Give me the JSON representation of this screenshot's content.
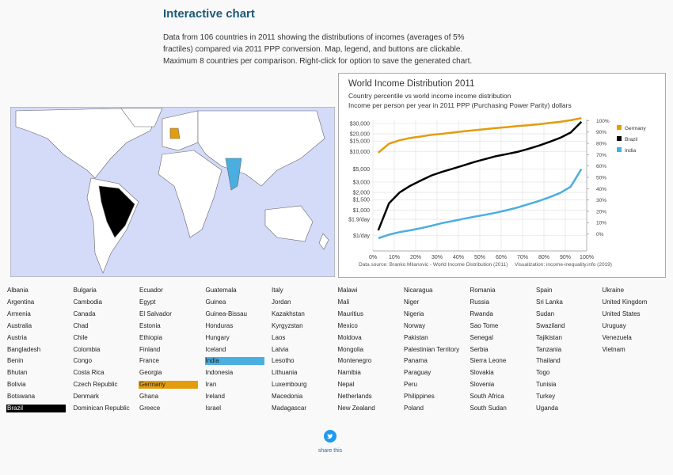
{
  "header": {
    "title": "Interactive chart",
    "description": "Data from 106 countries in 2011 showing the distributions of incomes (averages of 5% fractiles) compared via 2011 PPP conversion. Map, legend, and buttons are clickable. Maximum 8 countries per comparison. Right-click for option to save the generated chart."
  },
  "chart_data": {
    "type": "line",
    "title": "World Income Distribution 2011",
    "subtitle": "Country percentile vs world income income distribution",
    "y_axis_label": "Income per person per year in 2011 PPP (Purchasing Power Parity) dollars",
    "source": "Data source: Branko Milanovic - World Income Distribution (2011)",
    "credit": "Visualization: income-inequality.info (2019)",
    "x": [
      2.5,
      7.5,
      12.5,
      17.5,
      22.5,
      27.5,
      32.5,
      37.5,
      42.5,
      47.5,
      52.5,
      57.5,
      62.5,
      67.5,
      72.5,
      77.5,
      82.5,
      87.5,
      92.5,
      97.5
    ],
    "series": [
      {
        "name": "Germany",
        "color": "#e39c0c",
        "values": [
          9500,
          13500,
          15500,
          17000,
          18000,
          19200,
          20000,
          21000,
          22000,
          23000,
          24000,
          25000,
          26000,
          27000,
          28000,
          29000,
          30500,
          32000,
          34000,
          37000
        ]
      },
      {
        "name": "Brazil",
        "color": "#000000",
        "values": [
          450,
          1300,
          2000,
          2600,
          3200,
          3900,
          4500,
          5100,
          5800,
          6600,
          7400,
          8300,
          9000,
          9800,
          11000,
          12500,
          14500,
          17000,
          21000,
          32000
        ]
      },
      {
        "name": "India",
        "color": "#4aaee0",
        "values": [
          330,
          380,
          420,
          450,
          490,
          540,
          600,
          650,
          710,
          770,
          830,
          900,
          990,
          1100,
          1250,
          1420,
          1650,
          1950,
          2500,
          5000
        ]
      }
    ],
    "log_y": true,
    "grid": true,
    "xlim": [
      0,
      100
    ],
    "xticks": [
      {
        "value": 0,
        "label": "0%"
      },
      {
        "value": 10,
        "label": "10%"
      },
      {
        "value": 20,
        "label": "20%"
      },
      {
        "value": 30,
        "label": "30%"
      },
      {
        "value": 40,
        "label": "40%"
      },
      {
        "value": 50,
        "label": "50%"
      },
      {
        "value": 60,
        "label": "60%"
      },
      {
        "value": 70,
        "label": "70%"
      },
      {
        "value": 80,
        "label": "80%"
      },
      {
        "value": 90,
        "label": "90%"
      },
      {
        "value": 100,
        "label": "100%"
      }
    ],
    "ylim": [
      200,
      35000
    ],
    "yticks": [
      {
        "value": 365,
        "label": "$1/day"
      },
      {
        "value": 694,
        "label": "$1.9/day"
      },
      {
        "value": 1000,
        "label": "$1,000"
      },
      {
        "value": 1500,
        "label": "$1,500"
      },
      {
        "value": 2000,
        "label": "$2,000"
      },
      {
        "value": 3000,
        "label": "$3,000"
      },
      {
        "value": 5000,
        "label": "$5,000"
      },
      {
        "value": 10000,
        "label": "$10,000"
      },
      {
        "value": 15000,
        "label": "$15,000"
      },
      {
        "value": 20000,
        "label": "$20,000"
      },
      {
        "value": 30000,
        "label": "$30,000"
      }
    ],
    "y2lim": [
      -15,
      101
    ],
    "y2ticks": [
      {
        "value": 0,
        "label": "0%"
      },
      {
        "value": 10,
        "label": "10%"
      },
      {
        "value": 20,
        "label": "20%"
      },
      {
        "value": 30,
        "label": "30%"
      },
      {
        "value": 40,
        "label": "40%"
      },
      {
        "value": 50,
        "label": "50%"
      },
      {
        "value": 60,
        "label": "60%"
      },
      {
        "value": 70,
        "label": "70%"
      },
      {
        "value": 80,
        "label": "80%"
      },
      {
        "value": 90,
        "label": "90%"
      },
      {
        "value": 100,
        "label": "100%"
      }
    ],
    "legend": "right"
  },
  "countries": {
    "columns": [
      [
        "Albania",
        "Argentina",
        "Armenia",
        "Australia",
        "Austria",
        "Bangladesh",
        "Benin",
        "Bhutan",
        "Bolivia",
        "Botswana",
        "Brazil"
      ],
      [
        "Bulgaria",
        "Cambodia",
        "Canada",
        "Chad",
        "Chile",
        "Colombia",
        "Congo",
        "Costa Rica",
        "Czech Republic",
        "Denmark",
        "Dominican Republic"
      ],
      [
        "Ecuador",
        "Egypt",
        "El Salvador",
        "Estonia",
        "Ethiopia",
        "Finland",
        "France",
        "Georgia",
        "Germany",
        "Ghana",
        "Greece"
      ],
      [
        "Guatemala",
        "Guinea",
        "Guinea-Bissau",
        "Honduras",
        "Hungary",
        "Iceland",
        "India",
        "Indonesia",
        "Iran",
        "Ireland",
        "Israel"
      ],
      [
        "Italy",
        "Jordan",
        "Kazakhstan",
        "Kyrgyzstan",
        "Laos",
        "Latvia",
        "Lesotho",
        "Lithuania",
        "Luxembourg",
        "Macedonia",
        "Madagascar"
      ],
      [
        "Malawi",
        "Mali",
        "Mauritius",
        "Mexico",
        "Moldova",
        "Mongolia",
        "Montenegro",
        "Namibia",
        "Nepal",
        "Netherlands",
        "New Zealand"
      ],
      [
        "Nicaragua",
        "Niger",
        "Nigeria",
        "Norway",
        "Pakistan",
        "Palestinian Territory",
        "Panama",
        "Paraguay",
        "Peru",
        "Philippines",
        "Poland"
      ],
      [
        "Romania",
        "Russia",
        "Rwanda",
        "Sao Tome",
        "Senegal",
        "Serbia",
        "Sierra Leone",
        "Slovakia",
        "Slovenia",
        "South Africa",
        "South Sudan"
      ],
      [
        "Spain",
        "Sri Lanka",
        "Sudan",
        "Swaziland",
        "Tajikistan",
        "Tanzania",
        "Thailand",
        "Togo",
        "Tunisia",
        "Turkey",
        "Uganda"
      ],
      [
        "Ukraine",
        "United Kingdom",
        "United States",
        "Uruguay",
        "Venezuela",
        "Vietnam"
      ]
    ]
  },
  "share": {
    "label": "share this"
  }
}
